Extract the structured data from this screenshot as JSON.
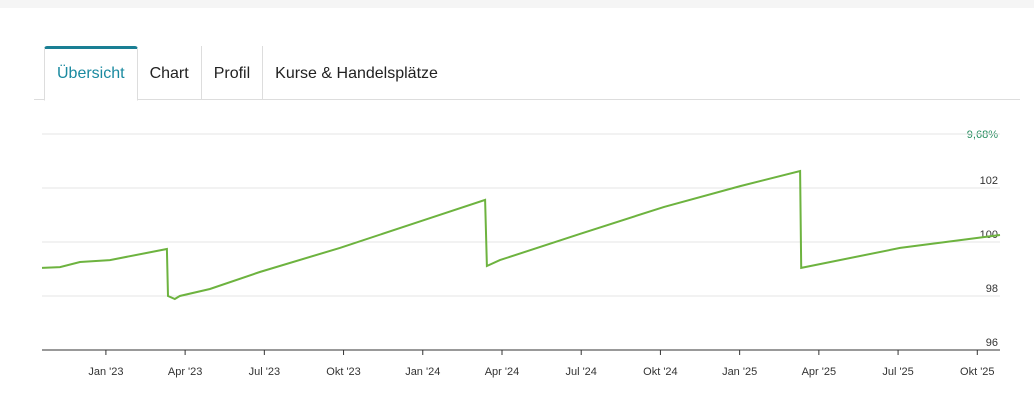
{
  "tabs": [
    "Übersicht",
    "Chart",
    "Profil",
    "Kurse & Handelsplätze"
  ],
  "chart_data": {
    "type": "line",
    "annotation": "9,68%",
    "x": [
      -2.42,
      -1.74,
      -0.98,
      0.15,
      2.31,
      2.35,
      2.61,
      2.8,
      3.94,
      5.83,
      8.86,
      12.05,
      14.36,
      14.43,
      14.92,
      17.95,
      21.14,
      24.02,
      26.29,
      26.33,
      30.08,
      33.86
    ],
    "series": [
      {
        "color": "#6db33f",
        "values": [
          99.04,
          99.07,
          99.26,
          99.33,
          99.74,
          98.0,
          97.89,
          98.0,
          98.26,
          98.89,
          99.78,
          100.81,
          101.56,
          99.11,
          99.33,
          100.3,
          101.3,
          102.07,
          102.63,
          99.04,
          99.78,
          100.26
        ]
      }
    ],
    "xlim": [
      -2.42,
      33.86
    ],
    "xticks": [
      {
        "value": 0,
        "label": "Jan '23"
      },
      {
        "value": 3,
        "label": "Apr '23"
      },
      {
        "value": 6,
        "label": "Jul '23"
      },
      {
        "value": 9,
        "label": "Okt '23"
      },
      {
        "value": 12,
        "label": "Jan '24"
      },
      {
        "value": 15,
        "label": "Apr '24"
      },
      {
        "value": 18,
        "label": "Jul '24"
      },
      {
        "value": 21,
        "label": "Okt '24"
      },
      {
        "value": 24,
        "label": "Jan '25"
      },
      {
        "value": 27,
        "label": "Apr '25"
      },
      {
        "value": 30,
        "label": "Jul '25"
      },
      {
        "value": 33,
        "label": "Okt '25"
      }
    ],
    "ylim": [
      96,
      104
    ],
    "yticks": [
      96,
      98,
      100,
      102
    ],
    "grid": true
  }
}
